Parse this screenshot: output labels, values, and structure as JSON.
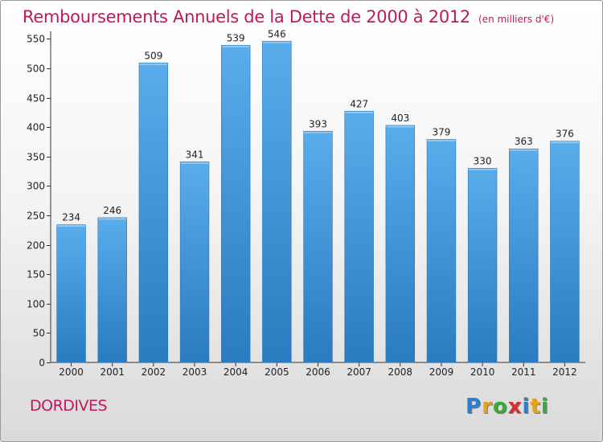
{
  "header": {
    "title": "Remboursements Annuels de la Dette de 2000 à 2012",
    "unit": "(en milliers d'€)"
  },
  "footer": {
    "commune": "DORDIVES",
    "logo_letters": [
      "P",
      "r",
      "o",
      "x",
      "i",
      "t",
      "i"
    ],
    "logo_colors": [
      "#2f7ec9",
      "#e8a21b",
      "#3aaa35",
      "#d9302c",
      "#2f7ec9",
      "#e8a21b",
      "#3aaa35"
    ]
  },
  "chart_data": {
    "type": "bar",
    "title": "Remboursements Annuels de la Dette de 2000 à 2012",
    "categories": [
      "2000",
      "2001",
      "2002",
      "2003",
      "2004",
      "2005",
      "2006",
      "2007",
      "2008",
      "2009",
      "2010",
      "2011",
      "2012"
    ],
    "values": [
      234,
      246,
      509,
      341,
      539,
      546,
      393,
      427,
      403,
      379,
      330,
      363,
      376
    ],
    "y_ticks": [
      0,
      50,
      100,
      150,
      200,
      250,
      300,
      350,
      400,
      450,
      500,
      550
    ],
    "ylim": [
      0,
      560
    ],
    "xlabel": "",
    "ylabel": "",
    "grid": false,
    "bar_color": "#3d95d8",
    "bar_color_light": "#5aaceb",
    "bar_color_dark": "#2a7bbf"
  }
}
